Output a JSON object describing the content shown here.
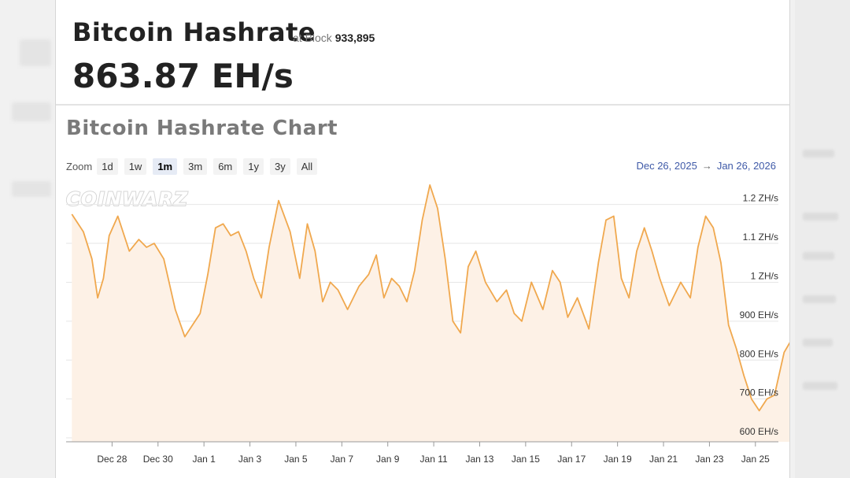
{
  "header": {
    "title": "Bitcoin Hashrate",
    "at_block_label": "at Block",
    "block_number": "933,895",
    "hashrate_value": "863.87 EH/s"
  },
  "chart_section": {
    "title": "Bitcoin Hashrate Chart",
    "zoom_label": "Zoom",
    "zoom_options": [
      "1d",
      "1w",
      "1m",
      "3m",
      "6m",
      "1y",
      "3y",
      "All"
    ],
    "zoom_selected": "1m",
    "range_from": "Dec 26, 2025",
    "range_arrow": "→",
    "range_to": "Jan 26, 2026",
    "watermark": "COINWARZ"
  },
  "colors": {
    "line": "#f0a84e",
    "fill": "#fdf1e6",
    "range_link": "#3f5aa8"
  },
  "chart_data": {
    "type": "area",
    "title": "Bitcoin Hashrate Chart",
    "xlabel": "",
    "ylabel": "",
    "x_start": "2025-12-26",
    "x_end": "2026-01-26",
    "x_ticks": [
      "Dec 28",
      "Dec 30",
      "Jan 1",
      "Jan 3",
      "Jan 5",
      "Jan 7",
      "Jan 9",
      "Jan 11",
      "Jan 13",
      "Jan 15",
      "Jan 17",
      "Jan 19",
      "Jan 21",
      "Jan 23",
      "Jan 25"
    ],
    "y_unit": "EH/s",
    "y_ticks": [
      600,
      700,
      800,
      900,
      1000,
      1100,
      1200
    ],
    "y_tick_labels": [
      "600 EH/s",
      "700 EH/s",
      "800 EH/s",
      "900 EH/s",
      "1 ZH/s",
      "1.1 ZH/s",
      "1.2 ZH/s"
    ],
    "ylim": [
      590,
      1260
    ],
    "grid": true,
    "series": [
      {
        "x": [
          "2025-12-26",
          "2025-12-26",
          "2025-12-27",
          "2025-12-27",
          "2025-12-27",
          "2025-12-27",
          "2025-12-28",
          "2025-12-28",
          "2025-12-29",
          "2025-12-29",
          "2025-12-29",
          "2025-12-30",
          "2025-12-30",
          "2025-12-31",
          "2025-12-31",
          "2025-12-31",
          "2026-01-01",
          "2026-01-01",
          "2026-01-01",
          "2026-01-02",
          "2026-01-02",
          "2026-01-02",
          "2026-01-03",
          "2026-01-03",
          "2026-01-03",
          "2026-01-04",
          "2026-01-04",
          "2026-01-05",
          "2026-01-05",
          "2026-01-05",
          "2026-01-06",
          "2026-01-06",
          "2026-01-06",
          "2026-01-07",
          "2026-01-07",
          "2026-01-08",
          "2026-01-08",
          "2026-01-08",
          "2026-01-09",
          "2026-01-09",
          "2026-01-09",
          "2026-01-10",
          "2026-01-10",
          "2026-01-10",
          "2026-01-11",
          "2026-01-11",
          "2026-01-11",
          "2026-01-12",
          "2026-01-12",
          "2026-01-12",
          "2026-01-13",
          "2026-01-13",
          "2026-01-14",
          "2026-01-14",
          "2026-01-14",
          "2026-01-15",
          "2026-01-15",
          "2026-01-16",
          "2026-01-16",
          "2026-01-16",
          "2026-01-17",
          "2026-01-17",
          "2026-01-18",
          "2026-01-18",
          "2026-01-18",
          "2026-01-19",
          "2026-01-19",
          "2026-01-19",
          "2026-01-20",
          "2026-01-20",
          "2026-01-20",
          "2026-01-21",
          "2026-01-21",
          "2026-01-22",
          "2026-01-22",
          "2026-01-22",
          "2026-01-23",
          "2026-01-23",
          "2026-01-23",
          "2026-01-24",
          "2026-01-24",
          "2026-01-24",
          "2026-01-25",
          "2026-01-25",
          "2026-01-25",
          "2026-01-26",
          "2026-01-26"
        ],
        "y": [
          1175,
          1130,
          1060,
          960,
          1010,
          1120,
          1170,
          1080,
          1110,
          1090,
          1100,
          1060,
          930,
          860,
          890,
          920,
          1020,
          1140,
          1150,
          1120,
          1130,
          1080,
          1010,
          960,
          1090,
          1210,
          1130,
          1010,
          1150,
          1080,
          950,
          1000,
          980,
          930,
          990,
          1020,
          1070,
          960,
          1010,
          990,
          950,
          1030,
          1160,
          1250,
          1190,
          1060,
          900,
          870,
          1040,
          1080,
          1000,
          950,
          980,
          920,
          900,
          1000,
          930,
          1030,
          1000,
          910,
          960,
          880,
          1050,
          1160,
          1170,
          1010,
          960,
          1080,
          1140,
          1080,
          1010,
          940,
          1000,
          960,
          1090,
          1170,
          1140,
          1050,
          890,
          830,
          760,
          700,
          670,
          700,
          710,
          820,
          870
        ]
      }
    ]
  }
}
